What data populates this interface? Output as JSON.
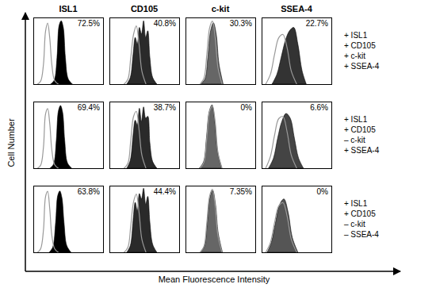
{
  "chart_data": {
    "type": "area",
    "x_label": "Mean Fluorescence Intensity",
    "y_label": "Cell Number",
    "xlim": [
      0,
      100
    ],
    "ylim": [
      0,
      100
    ],
    "tick_labels": false,
    "columns": [
      "ISL1",
      "CD105",
      "c-kit",
      "SSEA-4"
    ],
    "rows": [
      {
        "annotation": [
          "+ ISL1",
          "+ CD105",
          "+ c-kit",
          "+ SSEA-4"
        ],
        "panels": [
          {
            "percent": 72.5,
            "percent_label": "72.5%",
            "series": [
              {
                "type": "area",
                "color": "#000000",
                "x": [
                  25,
                  30,
                  34,
                  37,
                  40,
                  43,
                  46,
                  50,
                  56
                ],
                "values": [
                  0,
                  6,
                  40,
                  88,
                  95,
                  85,
                  40,
                  8,
                  0
                ]
              },
              {
                "type": "line",
                "color": "#999999",
                "x": [
                  5,
                  10,
                  14,
                  17,
                  20,
                  23,
                  26,
                  30,
                  36
                ],
                "values": [
                  0,
                  5,
                  30,
                  80,
                  92,
                  70,
                  30,
                  6,
                  0
                ]
              }
            ]
          },
          {
            "percent": 40.8,
            "percent_label": "40.8%",
            "series": [
              {
                "type": "area",
                "color": "#2a2a2a",
                "x": [
                  25,
                  30,
                  34,
                  37,
                  40,
                  43,
                  46,
                  49,
                  52,
                  55,
                  58,
                  62,
                  68
                ],
                "values": [
                  0,
                  10,
                  45,
                  70,
                  60,
                  85,
                  75,
                  95,
                  70,
                  80,
                  40,
                  10,
                  0
                ]
              },
              {
                "type": "line",
                "color": "#999999",
                "x": [
                  20,
                  26,
                  30,
                  34,
                  38,
                  42,
                  46,
                  52
                ],
                "values": [
                  0,
                  8,
                  40,
                  75,
                  88,
                  60,
                  20,
                  0
                ]
              }
            ]
          },
          {
            "percent": 30.3,
            "percent_label": "30.3%",
            "series": [
              {
                "type": "area",
                "color": "#666666",
                "x": [
                  22,
                  28,
                  32,
                  36,
                  40,
                  44,
                  48,
                  54
                ],
                "values": [
                  0,
                  8,
                  40,
                  80,
                  92,
                  75,
                  30,
                  0
                ]
              },
              {
                "type": "line",
                "color": "#999999",
                "x": [
                  20,
                  26,
                  30,
                  34,
                  38,
                  42,
                  46,
                  52
                ],
                "values": [
                  0,
                  10,
                  45,
                  85,
                  95,
                  70,
                  25,
                  0
                ]
              }
            ]
          },
          {
            "percent": 22.7,
            "percent_label": "22.7%",
            "series": [
              {
                "type": "area",
                "color": "#333333",
                "x": [
                  15,
                  22,
                  28,
                  34,
                  40,
                  46,
                  52,
                  58,
                  64
                ],
                "values": [
                  0,
                  15,
                  40,
                  65,
                  80,
                  85,
                  60,
                  20,
                  0
                ]
              },
              {
                "type": "line",
                "color": "#999999",
                "x": [
                  5,
                  12,
                  18,
                  24,
                  30,
                  36,
                  42,
                  50
                ],
                "values": [
                  0,
                  15,
                  45,
                  70,
                  75,
                  55,
                  20,
                  0
                ]
              }
            ]
          }
        ]
      },
      {
        "annotation": [
          "+ ISL1",
          "+ CD105",
          "– c-kit",
          "+ SSEA-4"
        ],
        "panels": [
          {
            "percent": 69.4,
            "percent_label": "69.4%",
            "series": [
              {
                "type": "area",
                "color": "#000000",
                "x": [
                  24,
                  29,
                  33,
                  36,
                  39,
                  42,
                  45,
                  49,
                  55
                ],
                "values": [
                  0,
                  6,
                  42,
                  86,
                  94,
                  84,
                  42,
                  8,
                  0
                ]
              },
              {
                "type": "line",
                "color": "#999999",
                "x": [
                  5,
                  10,
                  14,
                  17,
                  20,
                  23,
                  26,
                  30,
                  36
                ],
                "values": [
                  0,
                  5,
                  32,
                  82,
                  90,
                  68,
                  28,
                  6,
                  0
                ]
              }
            ]
          },
          {
            "percent": 38.7,
            "percent_label": "38.7%",
            "series": [
              {
                "type": "area",
                "color": "#2a2a2a",
                "x": [
                  25,
                  30,
                  34,
                  37,
                  40,
                  43,
                  46,
                  49,
                  52,
                  55,
                  58,
                  62,
                  68
                ],
                "values": [
                  0,
                  12,
                  50,
                  72,
                  65,
                  90,
                  70,
                  92,
                  75,
                  78,
                  38,
                  10,
                  0
                ]
              },
              {
                "type": "line",
                "color": "#999999",
                "x": [
                  20,
                  26,
                  30,
                  34,
                  38,
                  42,
                  46,
                  52
                ],
                "values": [
                  0,
                  8,
                  42,
                  78,
                  86,
                  58,
                  20,
                  0
                ]
              }
            ]
          },
          {
            "percent": 0,
            "percent_label": "0%",
            "series": [
              {
                "type": "area",
                "color": "#666666",
                "x": [
                  20,
                  26,
                  30,
                  34,
                  38,
                  42,
                  46,
                  52
                ],
                "values": [
                  0,
                  10,
                  45,
                  85,
                  95,
                  70,
                  25,
                  0
                ]
              },
              {
                "type": "line",
                "color": "#999999",
                "x": [
                  20,
                  26,
                  30,
                  34,
                  38,
                  42,
                  46,
                  52
                ],
                "values": [
                  0,
                  10,
                  46,
                  86,
                  94,
                  70,
                  24,
                  0
                ]
              }
            ]
          },
          {
            "percent": 6.6,
            "percent_label": "6.6%",
            "series": [
              {
                "type": "area",
                "color": "#444444",
                "x": [
                  10,
                  17,
                  23,
                  29,
                  35,
                  41,
                  47,
                  53,
                  60
                ],
                "values": [
                  0,
                  15,
                  45,
                  70,
                  82,
                  75,
                  45,
                  15,
                  0
                ]
              },
              {
                "type": "line",
                "color": "#999999",
                "x": [
                  5,
                  12,
                  18,
                  24,
                  30,
                  36,
                  42,
                  50
                ],
                "values": [
                  0,
                  18,
                  50,
                  75,
                  78,
                  55,
                  20,
                  0
                ]
              }
            ]
          }
        ]
      },
      {
        "annotation": [
          "+ ISL1",
          "+ CD105",
          "– c-kit",
          "– SSEA-4"
        ],
        "panels": [
          {
            "percent": 63.8,
            "percent_label": "63.8%",
            "series": [
              {
                "type": "area",
                "color": "#000000",
                "x": [
                  23,
                  28,
                  32,
                  35,
                  38,
                  41,
                  44,
                  48,
                  54
                ],
                "values": [
                  0,
                  8,
                  45,
                  85,
                  92,
                  82,
                  45,
                  10,
                  0
                ]
              },
              {
                "type": "line",
                "color": "#999999",
                "x": [
                  5,
                  10,
                  14,
                  17,
                  20,
                  23,
                  26,
                  30,
                  36
                ],
                "values": [
                  0,
                  6,
                  34,
                  84,
                  92,
                  66,
                  26,
                  6,
                  0
                ]
              }
            ]
          },
          {
            "percent": 44.4,
            "percent_label": "44.4%",
            "series": [
              {
                "type": "area",
                "color": "#2a2a2a",
                "x": [
                  25,
                  30,
                  34,
                  37,
                  40,
                  43,
                  46,
                  49,
                  52,
                  55,
                  58,
                  62,
                  68
                ],
                "values": [
                  0,
                  10,
                  48,
                  75,
                  62,
                  88,
                  80,
                  96,
                  72,
                  84,
                  45,
                  12,
                  0
                ]
              },
              {
                "type": "line",
                "color": "#999999",
                "x": [
                  20,
                  26,
                  30,
                  34,
                  38,
                  42,
                  46,
                  52
                ],
                "values": [
                  0,
                  8,
                  40,
                  76,
                  88,
                  60,
                  20,
                  0
                ]
              }
            ]
          },
          {
            "percent": 7.35,
            "percent_label": "7.35%",
            "series": [
              {
                "type": "area",
                "color": "#666666",
                "x": [
                  21,
                  27,
                  31,
                  35,
                  39,
                  43,
                  47,
                  53
                ],
                "values": [
                  0,
                  9,
                  42,
                  82,
                  93,
                  72,
                  28,
                  0
                ]
              },
              {
                "type": "line",
                "color": "#999999",
                "x": [
                  20,
                  26,
                  30,
                  34,
                  38,
                  42,
                  46,
                  52
                ],
                "values": [
                  0,
                  10,
                  45,
                  85,
                  95,
                  70,
                  25,
                  0
                ]
              }
            ]
          },
          {
            "percent": 0,
            "percent_label": "0%",
            "series": [
              {
                "type": "area",
                "color": "#555555",
                "x": [
                  8,
                  14,
                  20,
                  26,
                  32,
                  38,
                  44,
                  52
                ],
                "values": [
                  0,
                  15,
                  45,
                  72,
                  80,
                  60,
                  22,
                  0
                ]
              },
              {
                "type": "line",
                "color": "#999999",
                "x": [
                  5,
                  12,
                  18,
                  24,
                  30,
                  36,
                  42,
                  50
                ],
                "values": [
                  0,
                  15,
                  45,
                  70,
                  75,
                  55,
                  20,
                  0
                ]
              }
            ]
          }
        ]
      }
    ]
  }
}
